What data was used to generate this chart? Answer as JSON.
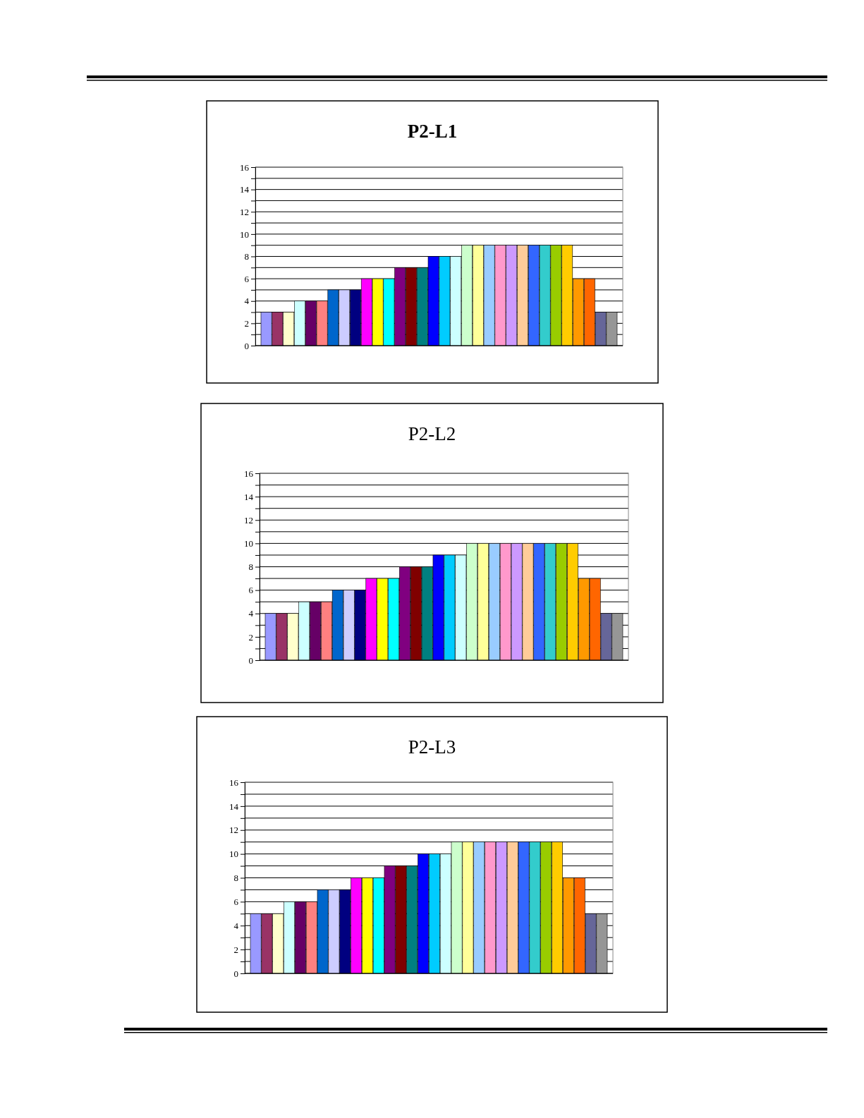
{
  "chart_data": [
    {
      "type": "bar",
      "title": "P2-L1",
      "categories": [
        null,
        null,
        null,
        null,
        null,
        null,
        null,
        null,
        null,
        null,
        null,
        null,
        null,
        null,
        null,
        null,
        null,
        null,
        null,
        null,
        null,
        null,
        null,
        null,
        null,
        null,
        null,
        null,
        null,
        null,
        null,
        null
      ],
      "values": [
        3,
        3,
        3,
        4,
        4,
        4,
        5,
        5,
        5,
        6,
        6,
        6,
        7,
        7,
        7,
        8,
        8,
        8,
        9,
        9,
        9,
        9,
        9,
        9,
        9,
        9,
        9,
        9,
        6,
        6,
        3,
        3
      ],
      "colors": [
        "#9999ff",
        "#993366",
        "#ffffcc",
        "#ccffff",
        "#660066",
        "#ff8080",
        "#0066cc",
        "#ccccff",
        "#000080",
        "#ff00ff",
        "#ffff00",
        "#00ffff",
        "#800080",
        "#800000",
        "#008080",
        "#0000ff",
        "#00ccff",
        "#ccffff",
        "#ccffcc",
        "#ffff99",
        "#99ccff",
        "#ff99cc",
        "#cc99ff",
        "#ffcc99",
        "#3366ff",
        "#33cccc",
        "#99cc00",
        "#ffcc00",
        "#ff9900",
        "#ff6600",
        "#666699",
        "#969696"
      ],
      "ylim": [
        0,
        16
      ],
      "yticks": [
        0,
        {
          "value": 1,
          "label": null
        },
        2,
        {
          "value": 3,
          "label": null
        },
        4,
        {
          "value": 5,
          "label": null
        },
        6,
        {
          "value": 7,
          "label": null
        },
        8,
        {
          "value": 9,
          "label": null
        },
        10,
        {
          "value": 11,
          "label": null
        },
        12,
        {
          "value": 13,
          "label": null
        },
        14,
        {
          "value": 15,
          "label": null
        },
        16
      ],
      "grid": "y"
    },
    {
      "type": "bar",
      "title": "P2-L2",
      "categories": [
        null,
        null,
        null,
        null,
        null,
        null,
        null,
        null,
        null,
        null,
        null,
        null,
        null,
        null,
        null,
        null,
        null,
        null,
        null,
        null,
        null,
        null,
        null,
        null,
        null,
        null,
        null,
        null,
        null,
        null,
        null,
        null
      ],
      "values": [
        4,
        4,
        4,
        5,
        5,
        5,
        6,
        6,
        6,
        7,
        7,
        7,
        8,
        8,
        8,
        9,
        9,
        9,
        10,
        10,
        10,
        10,
        10,
        10,
        10,
        10,
        10,
        10,
        7,
        7,
        4,
        4
      ],
      "colors": [
        "#9999ff",
        "#993366",
        "#ffffcc",
        "#ccffff",
        "#660066",
        "#ff8080",
        "#0066cc",
        "#ccccff",
        "#000080",
        "#ff00ff",
        "#ffff00",
        "#00ffff",
        "#800080",
        "#800000",
        "#008080",
        "#0000ff",
        "#00ccff",
        "#ccffff",
        "#ccffcc",
        "#ffff99",
        "#99ccff",
        "#ff99cc",
        "#cc99ff",
        "#ffcc99",
        "#3366ff",
        "#33cccc",
        "#99cc00",
        "#ffcc00",
        "#ff9900",
        "#ff6600",
        "#666699",
        "#969696"
      ],
      "ylim": [
        0,
        16
      ],
      "yticks": [
        0,
        {
          "value": 1,
          "label": null
        },
        2,
        {
          "value": 3,
          "label": null
        },
        4,
        {
          "value": 5,
          "label": null
        },
        6,
        {
          "value": 7,
          "label": null
        },
        8,
        {
          "value": 9,
          "label": null
        },
        10,
        {
          "value": 11,
          "label": null
        },
        12,
        {
          "value": 13,
          "label": null
        },
        14,
        {
          "value": 15,
          "label": null
        },
        16
      ],
      "grid": "y"
    },
    {
      "type": "bar",
      "title": "P2-L3",
      "categories": [
        null,
        null,
        null,
        null,
        null,
        null,
        null,
        null,
        null,
        null,
        null,
        null,
        null,
        null,
        null,
        null,
        null,
        null,
        null,
        null,
        null,
        null,
        null,
        null,
        null,
        null,
        null,
        null,
        null,
        null,
        null,
        null
      ],
      "values": [
        5,
        5,
        5,
        6,
        6,
        6,
        7,
        7,
        7,
        8,
        8,
        8,
        9,
        9,
        9,
        10,
        10,
        10,
        11,
        11,
        11,
        11,
        11,
        11,
        11,
        11,
        11,
        11,
        8,
        8,
        5,
        5
      ],
      "colors": [
        "#9999ff",
        "#993366",
        "#ffffcc",
        "#ccffff",
        "#660066",
        "#ff8080",
        "#0066cc",
        "#ccccff",
        "#000080",
        "#ff00ff",
        "#ffff00",
        "#00ffff",
        "#800080",
        "#800000",
        "#008080",
        "#0000ff",
        "#00ccff",
        "#ccffff",
        "#ccffcc",
        "#ffff99",
        "#99ccff",
        "#ff99cc",
        "#cc99ff",
        "#ffcc99",
        "#3366ff",
        "#33cccc",
        "#99cc00",
        "#ffcc00",
        "#ff9900",
        "#ff6600",
        "#666699",
        "#969696"
      ],
      "ylim": [
        0,
        16
      ],
      "yticks": [
        0,
        {
          "value": 1,
          "label": null
        },
        2,
        {
          "value": 3,
          "label": null
        },
        4,
        {
          "value": 5,
          "label": null
        },
        6,
        {
          "value": 7,
          "label": null
        },
        8,
        {
          "value": 9,
          "label": null
        },
        10,
        {
          "value": 11,
          "label": null
        },
        12,
        {
          "value": 13,
          "label": null
        },
        14,
        {
          "value": 15,
          "label": null
        },
        16
      ],
      "grid": "y"
    }
  ]
}
